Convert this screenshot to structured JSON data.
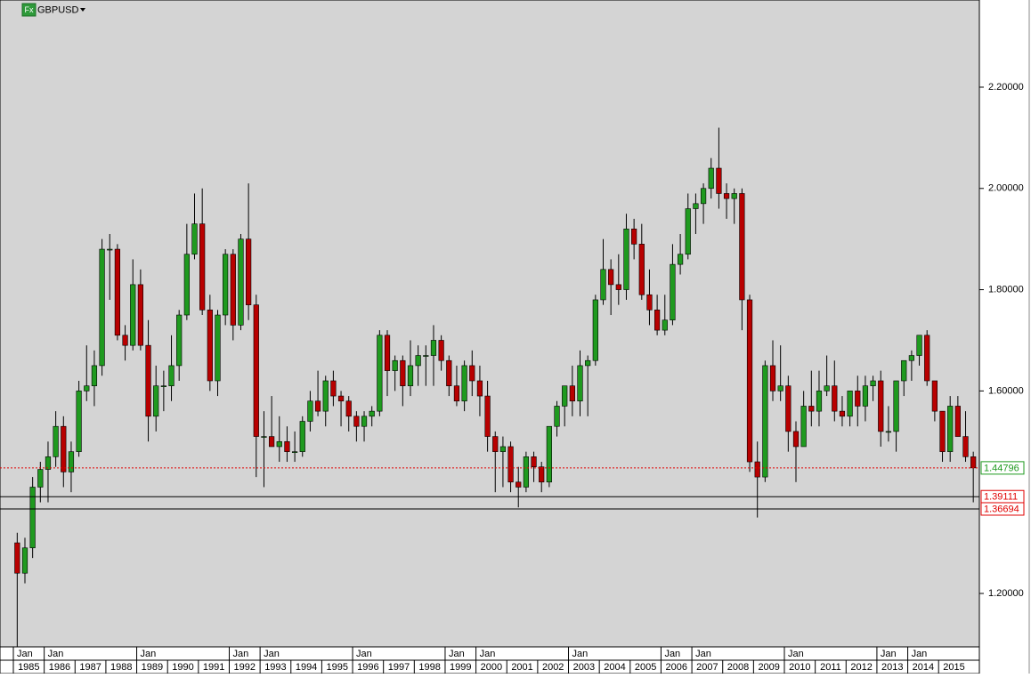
{
  "chart_data": {
    "type": "candlestick",
    "icon_text": "Fx",
    "title": "GBPUSD",
    "up_color": "#1f9a1f",
    "down_color": "#b80000",
    "background": "#d4d4d4",
    "xlim": [
      1984.567,
      2016.322
    ],
    "ylim": [
      1.0945,
      2.3722
    ],
    "yticks": [
      {
        "value": 1.2,
        "label": "1.20000"
      },
      {
        "value": 1.6,
        "label": "1.60000"
      },
      {
        "value": 1.8,
        "label": "1.80000"
      },
      {
        "value": 2.0,
        "label": "2.00000"
      },
      {
        "value": 2.2,
        "label": "2.20000"
      }
    ],
    "xticks": [
      1985,
      1986,
      1987,
      1988,
      1989,
      1990,
      1991,
      1992,
      1993,
      1994,
      1995,
      1996,
      1997,
      1998,
      1999,
      2000,
      2001,
      2002,
      2003,
      2004,
      2005,
      2006,
      2007,
      2008,
      2009,
      2010,
      2011,
      2012,
      2013,
      2014,
      2015
    ],
    "month_ticks": [
      {
        "value": 1985,
        "label": "Jan"
      },
      {
        "value": 1986,
        "label": "Jan"
      },
      {
        "value": 1989,
        "label": "Jan"
      },
      {
        "value": 1992,
        "label": "Jan"
      },
      {
        "value": 1993,
        "label": "Jan"
      },
      {
        "value": 1996,
        "label": "Jan"
      },
      {
        "value": 1999,
        "label": "Jan"
      },
      {
        "value": 2000,
        "label": "Jan"
      },
      {
        "value": 2003,
        "label": "Jan"
      },
      {
        "value": 2006,
        "label": "Jan"
      },
      {
        "value": 2007,
        "label": "Jan"
      },
      {
        "value": 2010,
        "label": "Jan"
      },
      {
        "value": 2013,
        "label": "Jan"
      },
      {
        "value": 2014,
        "label": "Jan"
      }
    ],
    "hlines": [
      {
        "value": 1.44796,
        "color": "#e00000",
        "style": "dotted",
        "label_color": "#1f9a1f"
      },
      {
        "value": 1.39111,
        "color": "#000000",
        "style": "solid",
        "label_color": "#e00000"
      },
      {
        "value": 1.36694,
        "color": "#000000",
        "style": "solid",
        "label_color": "#e00000"
      }
    ],
    "x": [
      1985.125,
      1985.375,
      1985.625,
      1985.875,
      1986.125,
      1986.375,
      1986.625,
      1986.875,
      1987.125,
      1987.375,
      1987.625,
      1987.875,
      1988.125,
      1988.375,
      1988.625,
      1988.875,
      1989.125,
      1989.375,
      1989.625,
      1989.875,
      1990.125,
      1990.375,
      1990.625,
      1990.875,
      1991.125,
      1991.375,
      1991.625,
      1991.875,
      1992.125,
      1992.375,
      1992.625,
      1992.875,
      1993.125,
      1993.375,
      1993.625,
      1993.875,
      1994.125,
      1994.375,
      1994.625,
      1994.875,
      1995.125,
      1995.375,
      1995.625,
      1995.875,
      1996.125,
      1996.375,
      1996.625,
      1996.875,
      1997.125,
      1997.375,
      1997.625,
      1997.875,
      1998.125,
      1998.375,
      1998.625,
      1998.875,
      1999.125,
      1999.375,
      1999.625,
      1999.875,
      2000.125,
      2000.375,
      2000.625,
      2000.875,
      2001.125,
      2001.375,
      2001.625,
      2001.875,
      2002.125,
      2002.375,
      2002.625,
      2002.875,
      2003.125,
      2003.375,
      2003.625,
      2003.875,
      2004.125,
      2004.375,
      2004.625,
      2004.875,
      2005.125,
      2005.375,
      2005.625,
      2005.875,
      2006.125,
      2006.375,
      2006.625,
      2006.875,
      2007.125,
      2007.375,
      2007.625,
      2007.875,
      2008.125,
      2008.375,
      2008.625,
      2008.875,
      2009.125,
      2009.375,
      2009.625,
      2009.875,
      2010.125,
      2010.375,
      2010.625,
      2010.875,
      2011.125,
      2011.375,
      2011.625,
      2011.875,
      2012.125,
      2012.375,
      2012.625,
      2012.875,
      2013.125,
      2013.375,
      2013.625,
      2013.875,
      2014.125,
      2014.375,
      2014.625,
      2014.875,
      2015.125,
      2015.375,
      2015.625,
      2015.875,
      2016.125
    ],
    "open": [
      1.3,
      1.24,
      1.29,
      1.41,
      1.445,
      1.47,
      1.53,
      1.44,
      1.48,
      1.6,
      1.61,
      1.65,
      1.88,
      1.88,
      1.71,
      1.69,
      1.81,
      1.69,
      1.55,
      1.61,
      1.61,
      1.65,
      1.75,
      1.87,
      1.93,
      1.76,
      1.62,
      1.75,
      1.87,
      1.73,
      1.9,
      1.77,
      1.51,
      1.51,
      1.49,
      1.5,
      1.48,
      1.48,
      1.54,
      1.58,
      1.56,
      1.62,
      1.59,
      1.58,
      1.55,
      1.53,
      1.55,
      1.56,
      1.71,
      1.64,
      1.66,
      1.61,
      1.65,
      1.67,
      1.67,
      1.7,
      1.66,
      1.61,
      1.58,
      1.65,
      1.62,
      1.59,
      1.51,
      1.48,
      1.49,
      1.42,
      1.41,
      1.47,
      1.45,
      1.42,
      1.53,
      1.57,
      1.61,
      1.58,
      1.65,
      1.66,
      1.78,
      1.84,
      1.81,
      1.8,
      1.92,
      1.89,
      1.79,
      1.76,
      1.72,
      1.74,
      1.85,
      1.87,
      1.96,
      1.97,
      2.0,
      2.04,
      1.99,
      1.98,
      1.99,
      1.78,
      1.46,
      1.43,
      1.65,
      1.6,
      1.61,
      1.52,
      1.49,
      1.57,
      1.56,
      1.6,
      1.61,
      1.56,
      1.55,
      1.6,
      1.57,
      1.61,
      1.62,
      1.52,
      1.52,
      1.62,
      1.66,
      1.67,
      1.71,
      1.62,
      1.56,
      1.48,
      1.57,
      1.51,
      1.47
    ],
    "high": [
      1.32,
      1.31,
      1.43,
      1.46,
      1.5,
      1.56,
      1.55,
      1.5,
      1.62,
      1.69,
      1.68,
      1.9,
      1.91,
      1.89,
      1.73,
      1.86,
      1.84,
      1.74,
      1.65,
      1.64,
      1.71,
      1.76,
      1.93,
      1.99,
      2.0,
      1.79,
      1.76,
      1.88,
      1.88,
      1.91,
      2.01,
      1.79,
      1.56,
      1.59,
      1.55,
      1.53,
      1.52,
      1.55,
      1.6,
      1.64,
      1.63,
      1.64,
      1.6,
      1.59,
      1.56,
      1.56,
      1.57,
      1.72,
      1.72,
      1.67,
      1.67,
      1.7,
      1.69,
      1.69,
      1.73,
      1.71,
      1.67,
      1.65,
      1.66,
      1.68,
      1.65,
      1.62,
      1.52,
      1.51,
      1.5,
      1.45,
      1.48,
      1.48,
      1.46,
      1.53,
      1.58,
      1.61,
      1.65,
      1.68,
      1.67,
      1.79,
      1.9,
      1.86,
      1.87,
      1.95,
      1.94,
      1.93,
      1.84,
      1.79,
      1.79,
      1.89,
      1.91,
      1.99,
      1.99,
      2.01,
      2.06,
      2.12,
      2.01,
      2.0,
      2.0,
      1.79,
      1.5,
      1.66,
      1.7,
      1.69,
      1.63,
      1.54,
      1.6,
      1.64,
      1.64,
      1.67,
      1.66,
      1.59,
      1.6,
      1.63,
      1.63,
      1.63,
      1.64,
      1.57,
      1.62,
      1.66,
      1.68,
      1.71,
      1.72,
      1.62,
      1.56,
      1.59,
      1.59,
      1.56,
      1.48
    ],
    "low": [
      1.05,
      1.22,
      1.27,
      1.38,
      1.38,
      1.45,
      1.41,
      1.4,
      1.47,
      1.58,
      1.57,
      1.63,
      1.78,
      1.7,
      1.66,
      1.68,
      1.68,
      1.5,
      1.52,
      1.56,
      1.58,
      1.62,
      1.74,
      1.86,
      1.75,
      1.6,
      1.59,
      1.73,
      1.7,
      1.72,
      1.74,
      1.43,
      1.41,
      1.49,
      1.46,
      1.46,
      1.46,
      1.47,
      1.52,
      1.55,
      1.53,
      1.57,
      1.53,
      1.52,
      1.5,
      1.5,
      1.53,
      1.55,
      1.59,
      1.6,
      1.57,
      1.59,
      1.61,
      1.61,
      1.61,
      1.64,
      1.59,
      1.57,
      1.56,
      1.59,
      1.55,
      1.48,
      1.4,
      1.41,
      1.4,
      1.37,
      1.4,
      1.42,
      1.4,
      1.41,
      1.51,
      1.53,
      1.55,
      1.55,
      1.55,
      1.65,
      1.77,
      1.75,
      1.77,
      1.78,
      1.86,
      1.78,
      1.73,
      1.71,
      1.71,
      1.73,
      1.83,
      1.86,
      1.91,
      1.93,
      1.98,
      1.96,
      1.94,
      1.93,
      1.72,
      1.44,
      1.35,
      1.42,
      1.58,
      1.58,
      1.48,
      1.42,
      1.49,
      1.53,
      1.53,
      1.59,
      1.54,
      1.53,
      1.53,
      1.53,
      1.54,
      1.58,
      1.49,
      1.5,
      1.48,
      1.59,
      1.62,
      1.65,
      1.61,
      1.54,
      1.46,
      1.46,
      1.51,
      1.46,
      1.38
    ],
    "close": [
      1.24,
      1.29,
      1.41,
      1.445,
      1.47,
      1.53,
      1.44,
      1.48,
      1.6,
      1.61,
      1.65,
      1.88,
      1.88,
      1.71,
      1.69,
      1.81,
      1.69,
      1.55,
      1.61,
      1.61,
      1.65,
      1.75,
      1.87,
      1.93,
      1.76,
      1.62,
      1.75,
      1.87,
      1.73,
      1.9,
      1.77,
      1.51,
      1.51,
      1.49,
      1.5,
      1.48,
      1.48,
      1.54,
      1.58,
      1.56,
      1.62,
      1.59,
      1.58,
      1.55,
      1.53,
      1.55,
      1.56,
      1.71,
      1.64,
      1.66,
      1.61,
      1.65,
      1.67,
      1.67,
      1.7,
      1.66,
      1.61,
      1.58,
      1.65,
      1.62,
      1.59,
      1.51,
      1.48,
      1.49,
      1.42,
      1.41,
      1.47,
      1.45,
      1.42,
      1.53,
      1.57,
      1.61,
      1.58,
      1.65,
      1.66,
      1.78,
      1.84,
      1.81,
      1.8,
      1.92,
      1.89,
      1.79,
      1.76,
      1.72,
      1.74,
      1.85,
      1.87,
      1.96,
      1.97,
      2.0,
      2.04,
      1.99,
      1.98,
      1.99,
      1.78,
      1.46,
      1.43,
      1.65,
      1.6,
      1.61,
      1.52,
      1.49,
      1.57,
      1.56,
      1.6,
      1.61,
      1.56,
      1.55,
      1.6,
      1.57,
      1.61,
      1.62,
      1.52,
      1.52,
      1.62,
      1.66,
      1.67,
      1.71,
      1.62,
      1.56,
      1.48,
      1.57,
      1.51,
      1.47,
      1.44796
    ]
  }
}
